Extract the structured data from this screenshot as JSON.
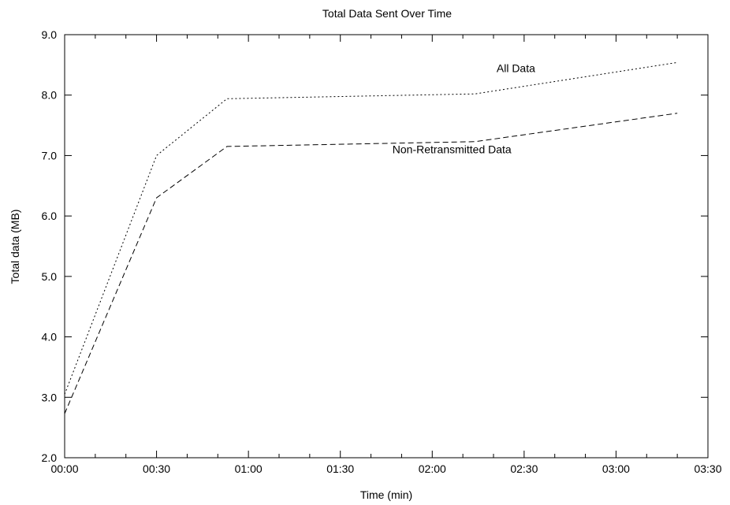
{
  "chart_data": {
    "type": "line",
    "title": "Total Data Sent Over Time",
    "xlabel": "Time (min)",
    "ylabel": "Total data (MB)",
    "xlim": [
      0,
      210
    ],
    "ylim": [
      2.0,
      9.0
    ],
    "x_ticks": [
      {
        "value": 0,
        "label": "00:00"
      },
      {
        "value": 30,
        "label": "00:30"
      },
      {
        "value": 60,
        "label": "01:00"
      },
      {
        "value": 90,
        "label": "01:30"
      },
      {
        "value": 120,
        "label": "02:00"
      },
      {
        "value": 150,
        "label": "02:30"
      },
      {
        "value": 180,
        "label": "03:00"
      },
      {
        "value": 210,
        "label": "03:30"
      }
    ],
    "x_minor_ticks": [
      10,
      20,
      40,
      50,
      70,
      80,
      100,
      110,
      130,
      140,
      160,
      170,
      190,
      200
    ],
    "y_ticks": [
      {
        "value": 2.0,
        "label": "2.0"
      },
      {
        "value": 3.0,
        "label": "3.0"
      },
      {
        "value": 4.0,
        "label": "4.0"
      },
      {
        "value": 5.0,
        "label": "5.0"
      },
      {
        "value": 6.0,
        "label": "6.0"
      },
      {
        "value": 7.0,
        "label": "7.0"
      },
      {
        "value": 8.0,
        "label": "8.0"
      },
      {
        "value": 9.0,
        "label": "9.0"
      }
    ],
    "grid": false,
    "series": [
      {
        "name": "All Data",
        "style": "dotted",
        "color": "#000000",
        "x": [
          0,
          30,
          53,
          134,
          200
        ],
        "y": [
          3.05,
          7.0,
          7.94,
          8.02,
          8.54
        ],
        "label_at": {
          "x": 141,
          "y": 8.38
        }
      },
      {
        "name": "Non-Retransmitted Data",
        "style": "dashed",
        "color": "#000000",
        "x": [
          0,
          30,
          53,
          134,
          200
        ],
        "y": [
          2.73,
          6.3,
          7.15,
          7.23,
          7.7
        ],
        "label_at": {
          "x": 107,
          "y": 7.04
        }
      }
    ]
  }
}
